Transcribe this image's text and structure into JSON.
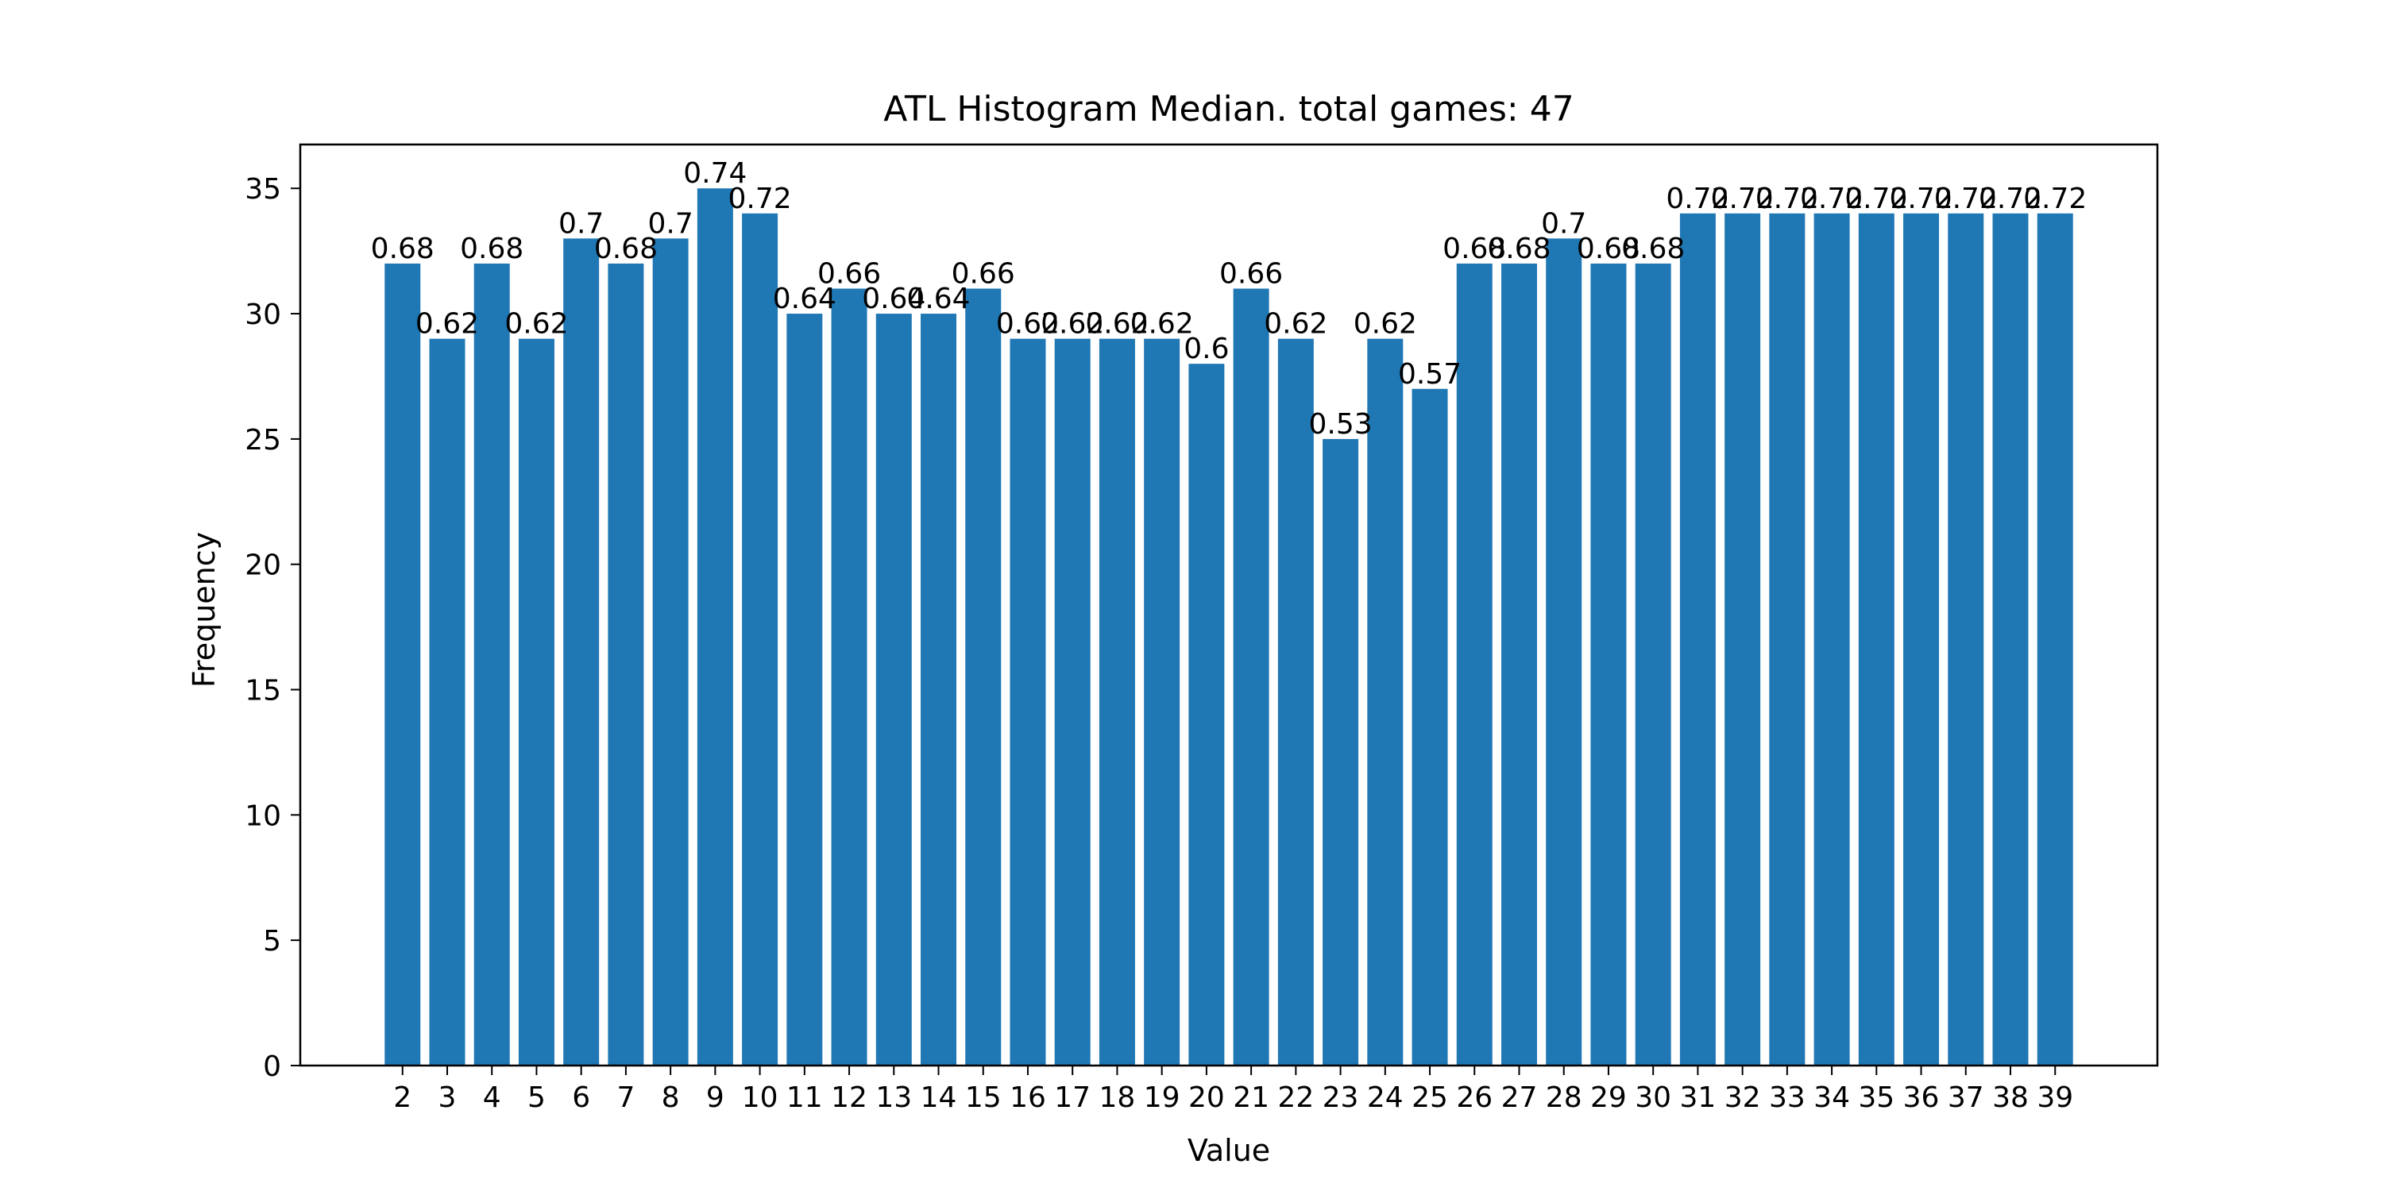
{
  "chart_data": {
    "type": "bar",
    "title": "ATL Histogram Median. total games: 47",
    "xlabel": "Value",
    "ylabel": "Frequency",
    "ylim": [
      0,
      36.75
    ],
    "yticks": [
      0,
      5,
      10,
      15,
      20,
      25,
      30,
      35
    ],
    "grid": false,
    "bar_color": "#1f77b4",
    "categories": [
      "2",
      "3",
      "4",
      "5",
      "6",
      "7",
      "8",
      "9",
      "10",
      "11",
      "12",
      "13",
      "14",
      "15",
      "16",
      "17",
      "18",
      "19",
      "20",
      "21",
      "22",
      "23",
      "24",
      "25",
      "26",
      "27",
      "28",
      "29",
      "30",
      "31",
      "32",
      "33",
      "34",
      "35",
      "36",
      "37",
      "38",
      "39"
    ],
    "values": [
      32,
      29,
      32,
      29,
      33,
      32,
      33,
      35,
      34,
      30,
      31,
      30,
      30,
      31,
      29,
      29,
      29,
      29,
      28,
      31,
      29,
      25,
      29,
      27,
      32,
      32,
      33,
      32,
      32,
      34,
      34,
      34,
      34,
      34,
      34,
      34,
      34,
      34
    ],
    "bar_labels": [
      "0.68",
      "0.62",
      "0.68",
      "0.62",
      "0.7",
      "0.68",
      "0.7",
      "0.74",
      "0.72",
      "0.64",
      "0.66",
      "0.64",
      "0.64",
      "0.66",
      "0.62",
      "0.62",
      "0.62",
      "0.62",
      "0.6",
      "0.66",
      "0.62",
      "0.53",
      "0.62",
      "0.57",
      "0.68",
      "0.68",
      "0.7",
      "0.68",
      "0.68",
      "0.72",
      "0.72",
      "0.72",
      "0.72",
      "0.72",
      "0.72",
      "0.72",
      "0.72",
      "0.72"
    ]
  }
}
